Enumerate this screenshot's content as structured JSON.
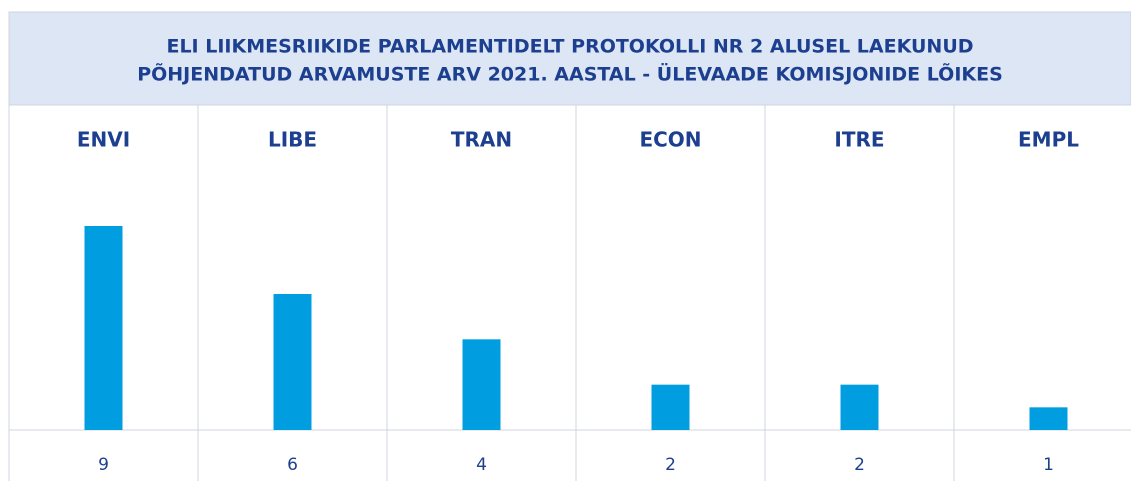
{
  "chart_data": {
    "type": "bar",
    "title": [
      "ELI LIIKMESRIIKIDE PARLAMENTIDELT PROTOKOLLI NR 2 ALUSEL LAEKUNUD",
      "PÕHJENDATUD ARVAMUSTE ARV 2021. AASTAL - ÜLEVAADE KOMISJONIDE LÕIKES"
    ],
    "categories": [
      "ENVI",
      "LIBE",
      "TRAN",
      "ECON",
      "ITRE",
      "EMPL"
    ],
    "values": [
      9,
      6,
      4,
      2,
      2,
      1
    ],
    "color": "#009ee0"
  }
}
